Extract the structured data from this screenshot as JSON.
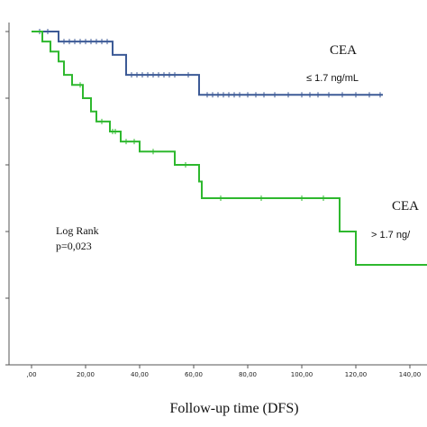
{
  "chart_data": {
    "type": "line",
    "step": true,
    "title": "",
    "xlabel": "Follow-up time (DFS)",
    "ylabel": "",
    "xlim": [
      0,
      150
    ],
    "ylim": [
      0,
      1
    ],
    "x_ticks": [
      0,
      20,
      40,
      60,
      80,
      100,
      120,
      140
    ],
    "x_tick_labels": [
      ",00",
      "20,00",
      "40,00",
      "60,00",
      "80,00",
      "100,00",
      "120,00",
      "140,00"
    ],
    "y_ticks": [
      0,
      0.2,
      0.4,
      0.6,
      0.8,
      1.0
    ],
    "grid": false,
    "series": [
      {
        "name_parts": [
          "CEA",
          "≤ 1.7 ng/mL"
        ],
        "color": "#3c5a96",
        "steps": [
          [
            0,
            1.0
          ],
          [
            10,
            0.97
          ],
          [
            30,
            0.93
          ],
          [
            35,
            0.87
          ],
          [
            62,
            0.81
          ],
          [
            130,
            0.81
          ]
        ],
        "censored": [
          3,
          6,
          12,
          14,
          16,
          18,
          20,
          22,
          24,
          26,
          28,
          37,
          39,
          41,
          43,
          45,
          47,
          49,
          51,
          53,
          58,
          65,
          67,
          69,
          71,
          73,
          75,
          77,
          80,
          83,
          86,
          90,
          95,
          100,
          103,
          106,
          110,
          115,
          120,
          125,
          129
        ]
      },
      {
        "name_parts": [
          "CEA",
          "> 1.7 ng/"
        ],
        "color": "#2eb82e",
        "steps": [
          [
            0,
            1.0
          ],
          [
            4,
            0.97
          ],
          [
            7,
            0.94
          ],
          [
            10,
            0.91
          ],
          [
            12,
            0.87
          ],
          [
            15,
            0.84
          ],
          [
            19,
            0.8
          ],
          [
            22,
            0.76
          ],
          [
            24,
            0.73
          ],
          [
            29,
            0.7
          ],
          [
            33,
            0.67
          ],
          [
            40,
            0.64
          ],
          [
            53,
            0.6
          ],
          [
            62,
            0.55
          ],
          [
            63,
            0.5
          ],
          [
            114,
            0.4
          ],
          [
            120,
            0.3
          ],
          [
            150,
            0.3
          ]
        ],
        "censored": [
          18,
          26,
          30,
          31,
          35,
          38,
          45,
          57,
          70,
          85,
          100,
          108
        ]
      }
    ],
    "annotations": {
      "test": "Log Rank",
      "pvalue": "p=0,023"
    }
  }
}
